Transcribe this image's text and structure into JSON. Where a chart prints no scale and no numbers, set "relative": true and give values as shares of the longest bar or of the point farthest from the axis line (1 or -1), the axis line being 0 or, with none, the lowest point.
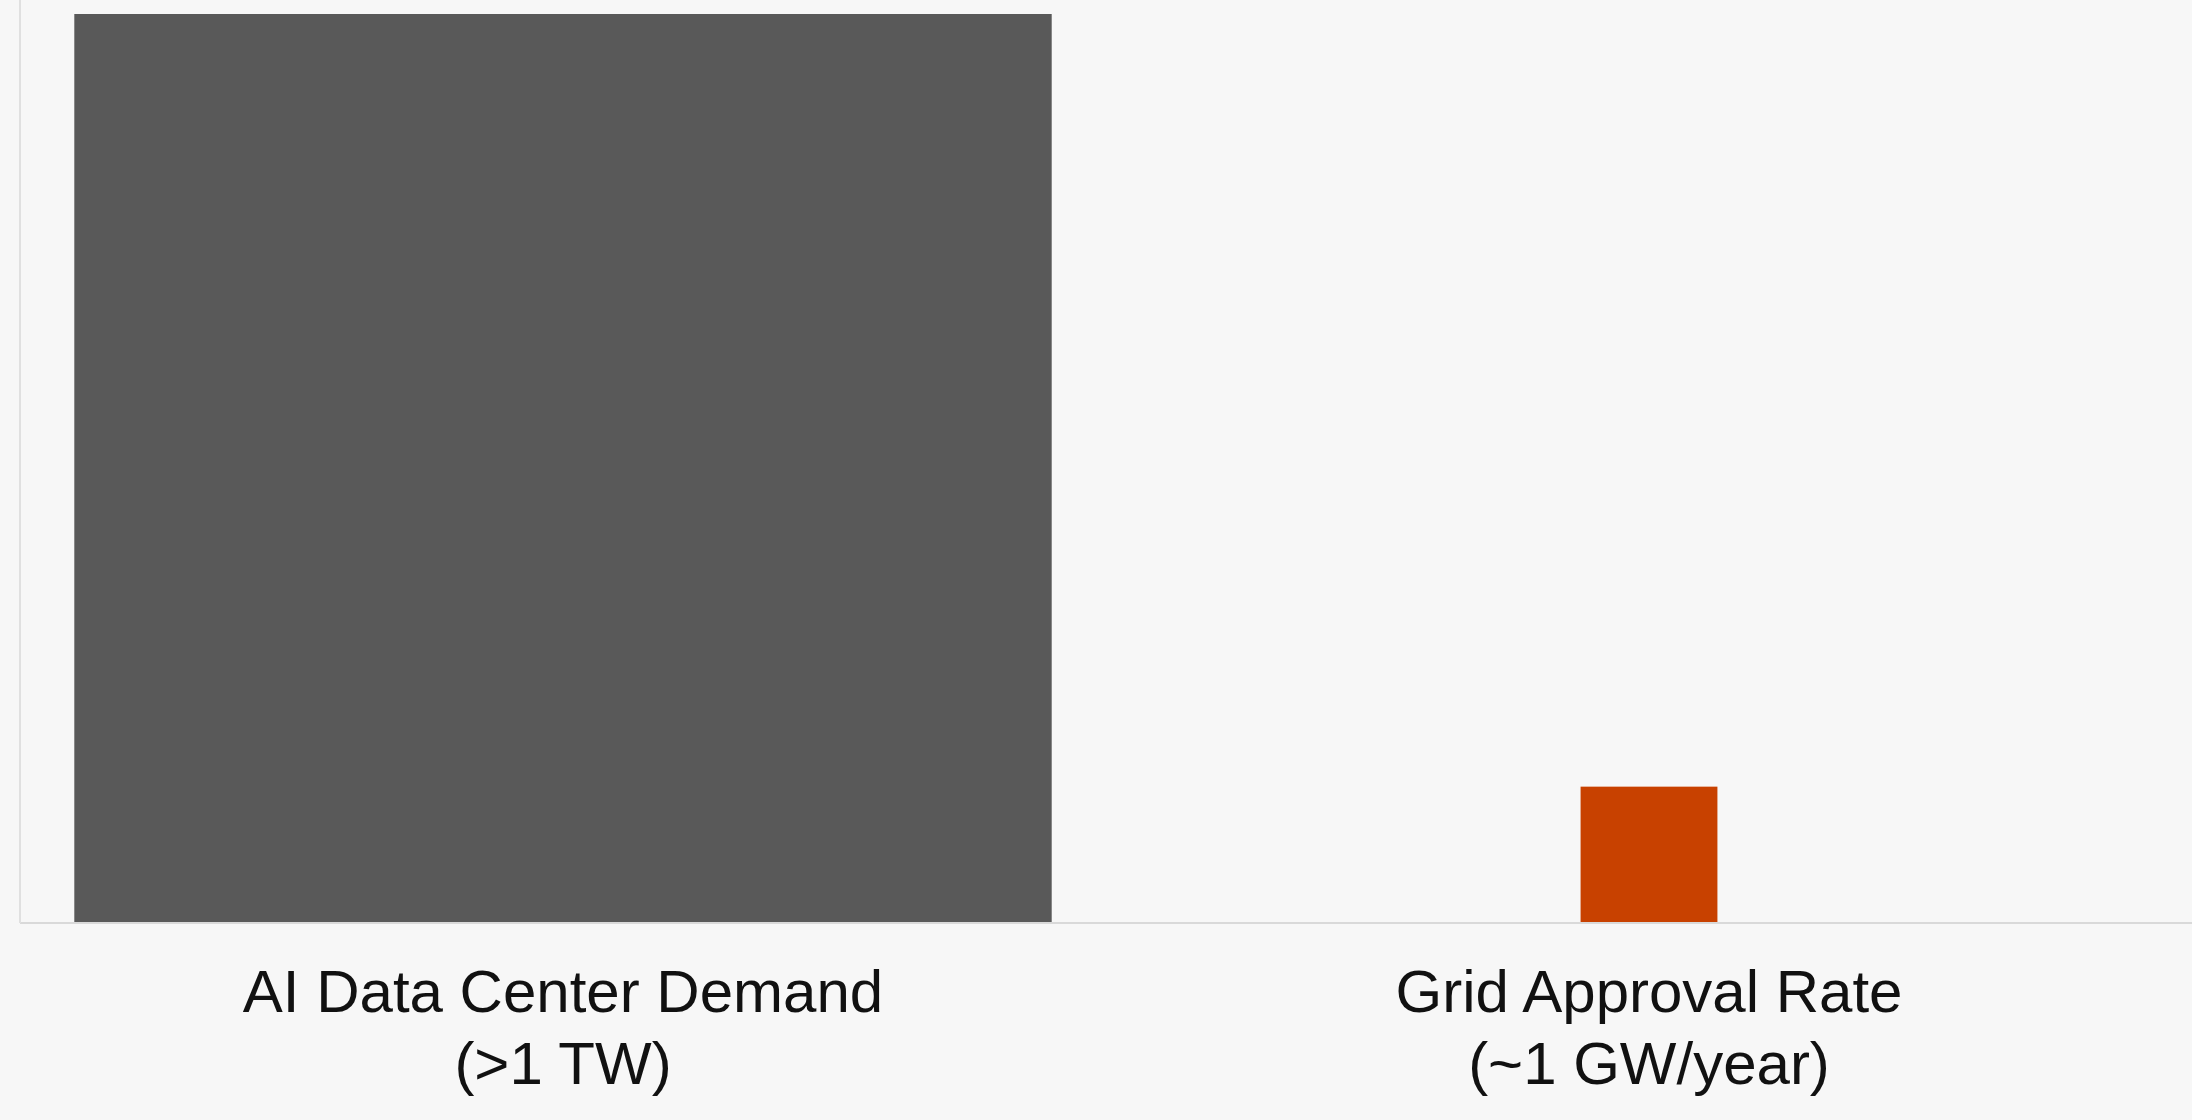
{
  "chart_data": {
    "type": "bar",
    "relative": true,
    "categories": [
      "AI Data Center Demand\n(>1 TW)",
      "Grid Approval Rate\n(~1 GW/year)"
    ],
    "values": [
      1,
      0.15
    ],
    "colors": [
      "#595959",
      "#c84100"
    ]
  }
}
